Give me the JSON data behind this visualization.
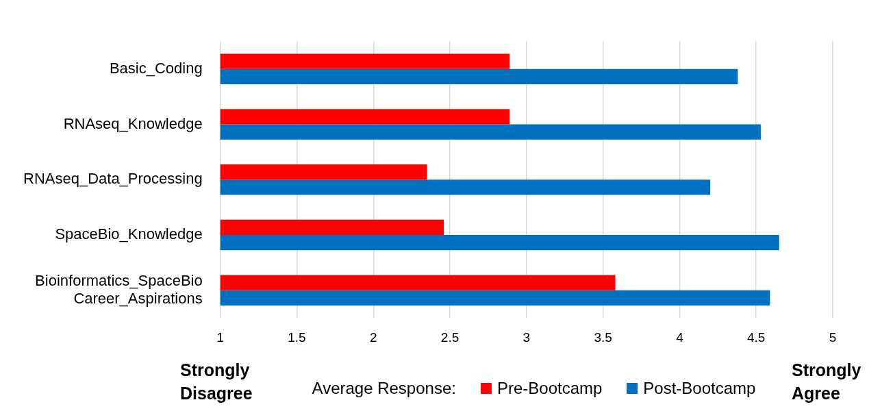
{
  "chart_data": {
    "type": "bar",
    "orientation": "horizontal",
    "categories": [
      "Basic_Coding",
      "RNAseq_Knowledge",
      "RNAseq_Data_Processing",
      "SpaceBio_Knowledge",
      "Bioinformatics_SpaceBio\nCareer_Aspirations"
    ],
    "series": [
      {
        "name": "Pre-Bootcamp",
        "color": "#ff0000",
        "values": [
          2.89,
          2.89,
          2.35,
          2.46,
          3.58
        ]
      },
      {
        "name": "Post-Bootcamp",
        "color": "#0070c0",
        "values": [
          4.38,
          4.53,
          4.2,
          4.65,
          4.59
        ]
      }
    ],
    "xlim": [
      1,
      5
    ],
    "xticks": [
      1,
      1.5,
      2,
      2.5,
      3,
      3.5,
      4,
      4.5,
      5
    ],
    "grid": "x",
    "legend": "bottom",
    "legend_title": "Average Response:",
    "annotations": [
      "Strongly Disagree",
      "Strongly Agree"
    ]
  }
}
